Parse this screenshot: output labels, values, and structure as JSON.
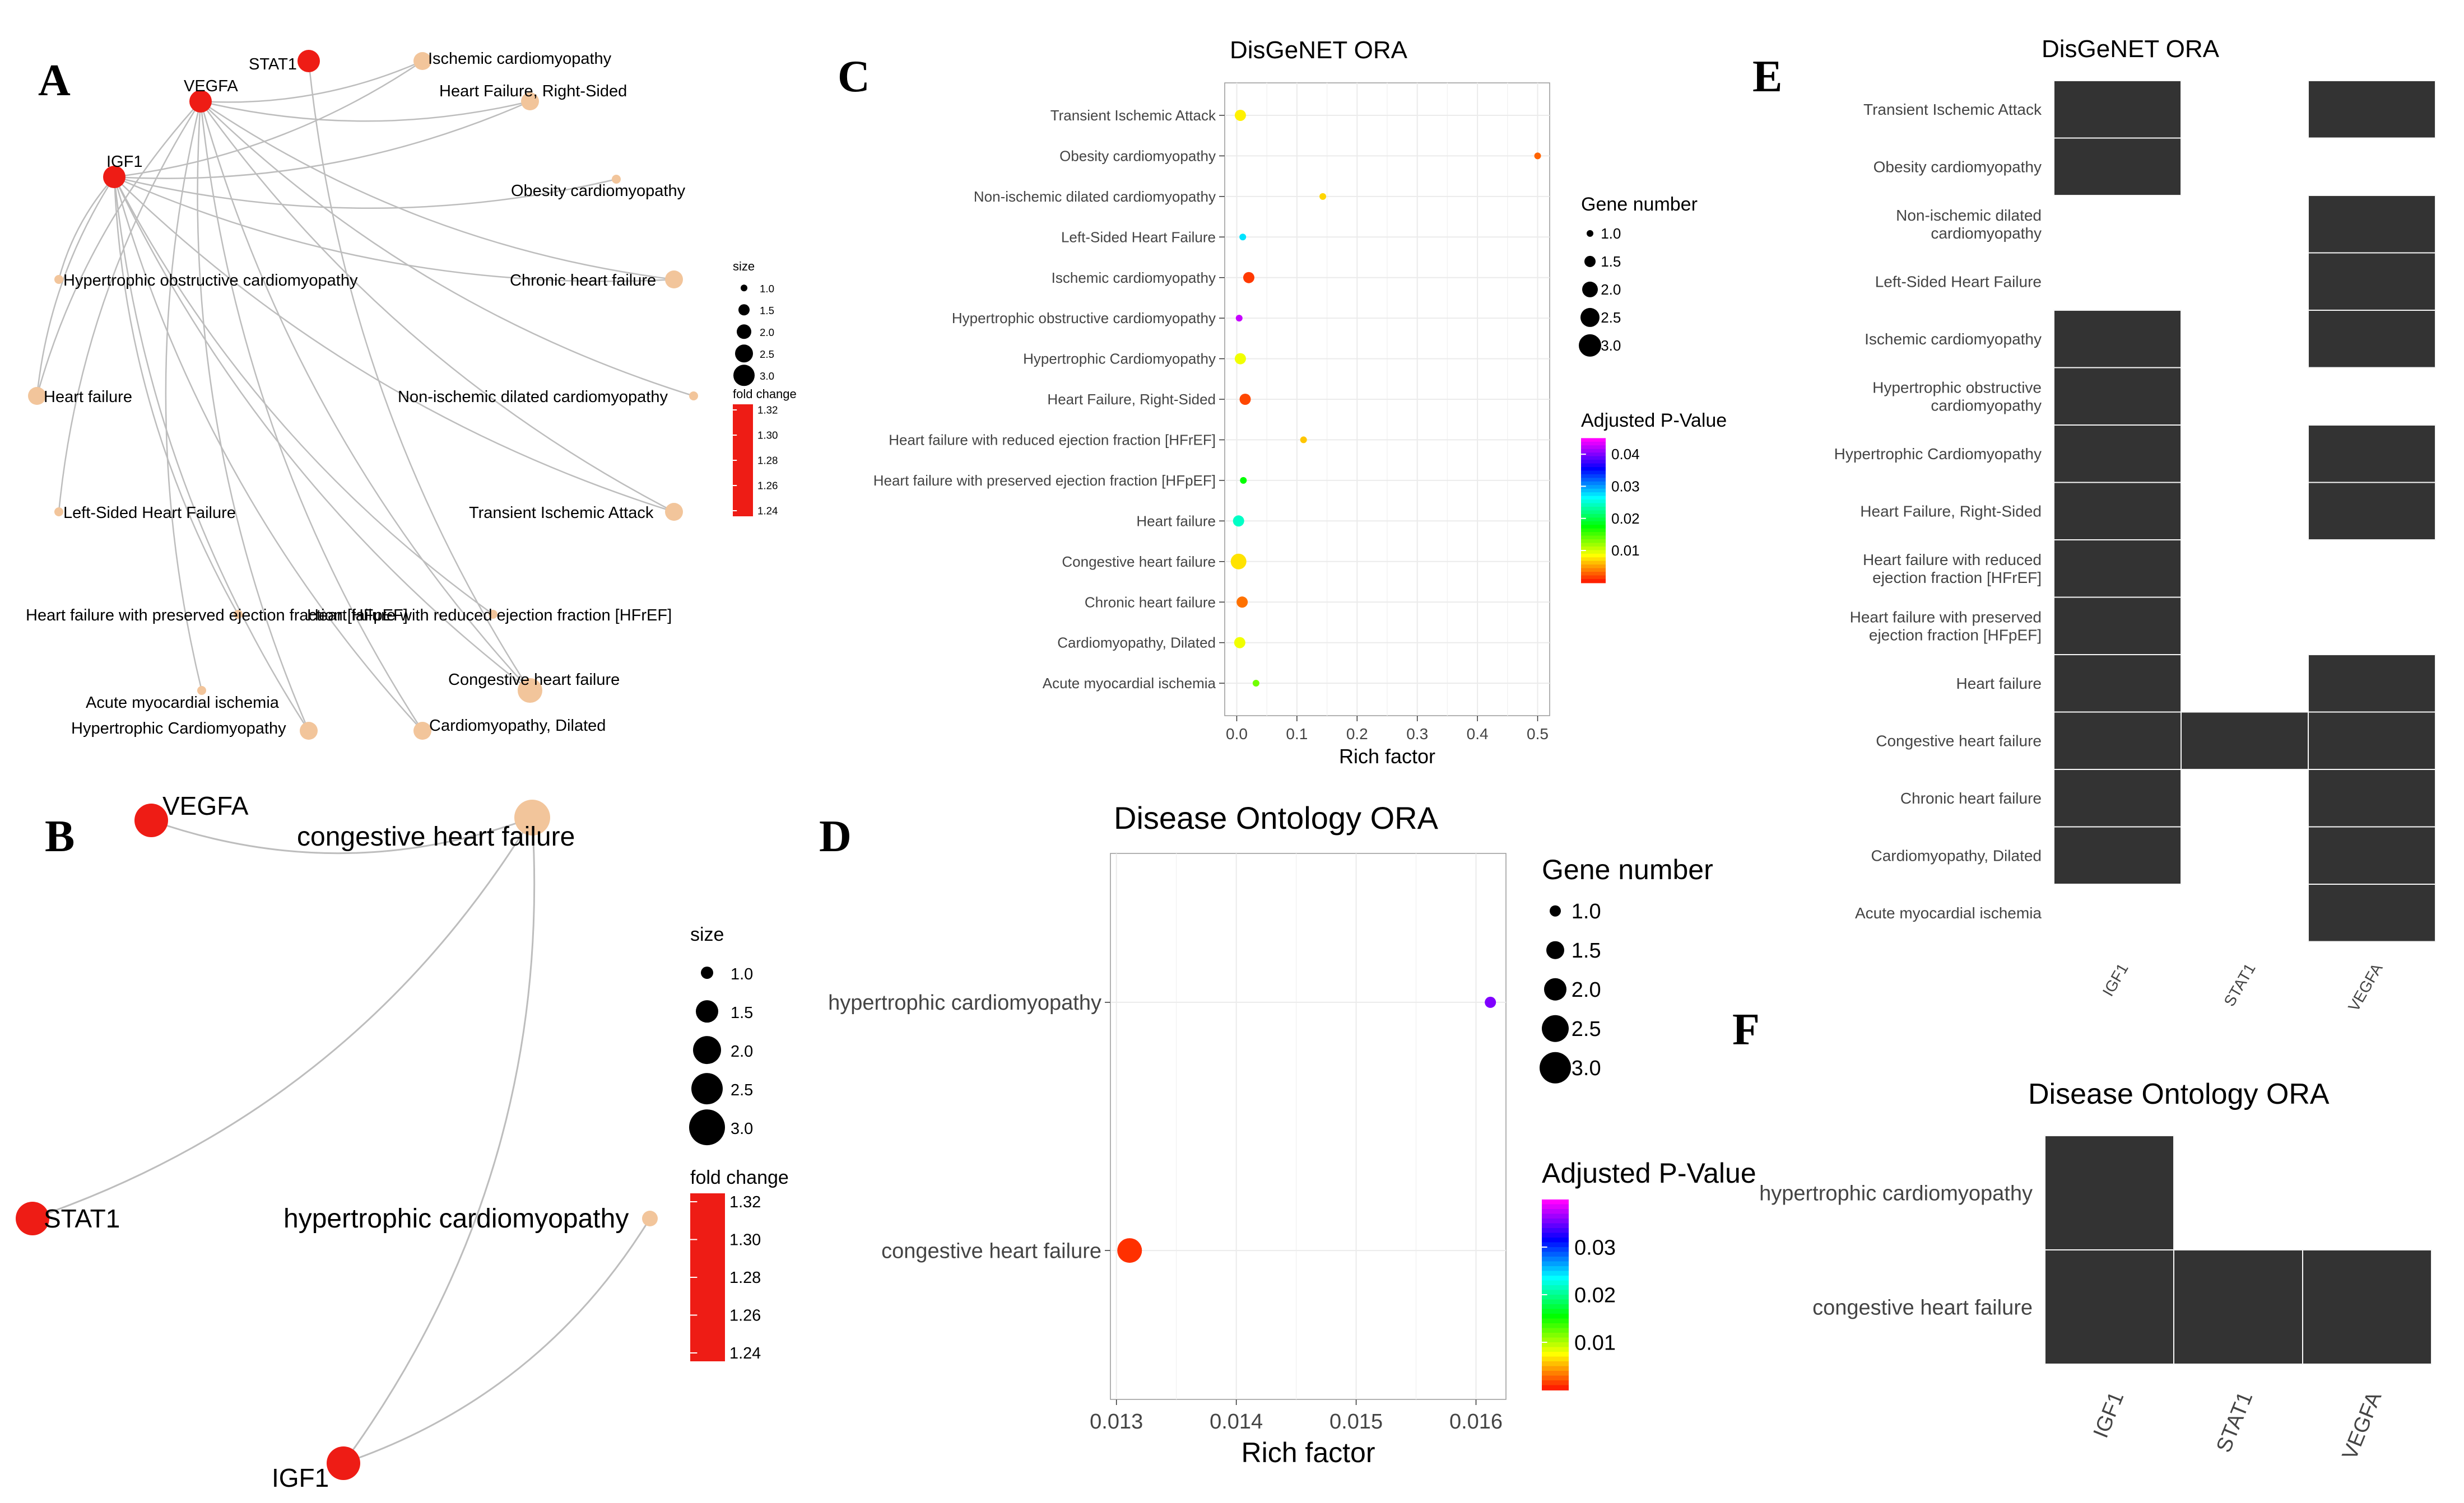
{
  "panel_labels": [
    "A",
    "B",
    "C",
    "D",
    "E",
    "F"
  ],
  "chart_data": [
    {
      "panel": "A",
      "type": "network",
      "genes": [
        {
          "name": "STAT1",
          "color": "#ee1c15"
        },
        {
          "name": "VEGFA",
          "color": "#ee1c15"
        },
        {
          "name": "IGF1",
          "color": "#ee1c15"
        }
      ],
      "diseases": [
        {
          "name": "Ischemic cardiomyopathy",
          "size": 2
        },
        {
          "name": "Heart Failure, Right-Sided",
          "size": 2
        },
        {
          "name": "Obesity cardiomyopathy",
          "size": 1
        },
        {
          "name": "Chronic heart failure",
          "size": 2
        },
        {
          "name": "Hypertrophic obstructive cardiomyopathy",
          "size": 1
        },
        {
          "name": "Heart failure",
          "size": 2
        },
        {
          "name": "Non-ischemic dilated cardiomyopathy",
          "size": 1
        },
        {
          "name": "Left-Sided Heart Failure",
          "size": 1
        },
        {
          "name": "Transient Ischemic Attack",
          "size": 2
        },
        {
          "name": "Heart failure with preserved ejection fraction [HFpEF]",
          "size": 1
        },
        {
          "name": "Heart failure with reduced ejection fraction [HFrEF]",
          "size": 1
        },
        {
          "name": "Acute myocardial ischemia",
          "size": 1
        },
        {
          "name": "Congestive heart failure",
          "size": 3
        },
        {
          "name": "Hypertrophic Cardiomyopathy",
          "size": 2
        },
        {
          "name": "Cardiomyopathy, Dilated",
          "size": 2
        }
      ],
      "edges": [
        [
          "VEGFA",
          "Ischemic cardiomyopathy"
        ],
        [
          "VEGFA",
          "Heart Failure, Right-Sided"
        ],
        [
          "VEGFA",
          "Chronic heart failure"
        ],
        [
          "VEGFA",
          "Non-ischemic dilated cardiomyopathy"
        ],
        [
          "VEGFA",
          "Left-Sided Heart Failure"
        ],
        [
          "VEGFA",
          "Transient Ischemic Attack"
        ],
        [
          "VEGFA",
          "Heart failure"
        ],
        [
          "VEGFA",
          "Congestive heart failure"
        ],
        [
          "VEGFA",
          "Hypertrophic Cardiomyopathy"
        ],
        [
          "VEGFA",
          "Cardiomyopathy, Dilated"
        ],
        [
          "VEGFA",
          "Acute myocardial ischemia"
        ],
        [
          "IGF1",
          "Ischemic cardiomyopathy"
        ],
        [
          "IGF1",
          "Obesity cardiomyopathy"
        ],
        [
          "IGF1",
          "Heart Failure, Right-Sided"
        ],
        [
          "IGF1",
          "Chronic heart failure"
        ],
        [
          "IGF1",
          "Hypertrophic obstructive cardiomyopathy"
        ],
        [
          "IGF1",
          "Heart failure"
        ],
        [
          "IGF1",
          "Transient Ischemic Attack"
        ],
        [
          "IGF1",
          "Heart failure with preserved ejection fraction [HFpEF]"
        ],
        [
          "IGF1",
          "Heart failure with reduced ejection fraction [HFrEF]"
        ],
        [
          "IGF1",
          "Congestive heart failure"
        ],
        [
          "IGF1",
          "Hypertrophic Cardiomyopathy"
        ],
        [
          "IGF1",
          "Cardiomyopathy, Dilated"
        ],
        [
          "STAT1",
          "Congestive heart failure"
        ]
      ],
      "size_legend": {
        "title": "size",
        "values": [
          "1.0",
          "1.5",
          "2.0",
          "2.5",
          "3.0"
        ]
      },
      "color_legend": {
        "title": "fold change",
        "values": [
          "1.32",
          "1.30",
          "1.28",
          "1.26",
          "1.24"
        ]
      }
    },
    {
      "panel": "B",
      "type": "network",
      "genes": [
        {
          "name": "VEGFA",
          "color": "#ee1c15"
        },
        {
          "name": "STAT1",
          "color": "#ee1c15"
        },
        {
          "name": "IGF1",
          "color": "#ee1c15"
        }
      ],
      "diseases": [
        {
          "name": "congestive heart failure",
          "size": 3
        },
        {
          "name": "hypertrophic cardiomyopathy",
          "size": 1
        }
      ],
      "edges": [
        [
          "VEGFA",
          "congestive heart failure"
        ],
        [
          "STAT1",
          "congestive heart failure"
        ],
        [
          "IGF1",
          "congestive heart failure"
        ],
        [
          "IGF1",
          "hypertrophic cardiomyopathy"
        ]
      ],
      "size_legend": {
        "title": "size",
        "values": [
          "1.0",
          "1.5",
          "2.0",
          "2.5",
          "3.0"
        ]
      },
      "color_legend": {
        "title": "fold change",
        "values": [
          "1.32",
          "1.30",
          "1.28",
          "1.26",
          "1.24"
        ]
      }
    },
    {
      "panel": "C",
      "type": "scatter",
      "title": "DisGeNET ORA",
      "xlabel": "Rich factor",
      "xlim": [
        -0.02,
        0.52
      ],
      "xticks": [
        "0.0",
        "0.1",
        "0.2",
        "0.3",
        "0.4",
        "0.5"
      ],
      "categories": [
        "Transient Ischemic Attack",
        "Obesity cardiomyopathy",
        "Non-ischemic dilated cardiomyopathy",
        "Left-Sided Heart Failure",
        "Ischemic cardiomyopathy",
        "Hypertrophic obstructive cardiomyopathy",
        "Hypertrophic Cardiomyopathy",
        "Heart Failure, Right-Sided",
        "Heart failure with reduced ejection fraction [HFrEF]",
        "Heart failure with preserved ejection fraction [HFpEF]",
        "Heart failure",
        "Congestive heart failure",
        "Chronic heart failure",
        "Cardiomyopathy, Dilated",
        "Acute myocardial ischemia"
      ],
      "rich_factor": [
        0.006,
        0.5,
        0.143,
        0.01,
        0.02,
        0.004,
        0.006,
        0.014,
        0.111,
        0.011,
        0.003,
        0.003,
        0.009,
        0.005,
        0.032
      ],
      "gene_number": [
        2,
        1,
        1,
        1,
        2,
        1,
        2,
        2,
        1,
        1,
        2,
        3,
        2,
        2,
        1
      ],
      "adj_p": [
        0.0085,
        0.0035,
        0.0075,
        0.028,
        0.002,
        0.043,
        0.0095,
        0.0025,
        0.007,
        0.018,
        0.025,
        0.008,
        0.004,
        0.0095,
        0.014
      ],
      "size_legend": {
        "title": "Gene number",
        "values": [
          "1.0",
          "1.5",
          "2.0",
          "2.5",
          "3.0"
        ]
      },
      "color_legend": {
        "title": "Adjusted P-Value",
        "values": [
          "0.04",
          "0.03",
          "0.02",
          "0.01"
        ]
      }
    },
    {
      "panel": "D",
      "type": "scatter",
      "title": "Disease Ontology ORA",
      "xlabel": "Rich factor",
      "xlim": [
        0.01295,
        0.01625
      ],
      "xticks": [
        "0.013",
        "0.014",
        "0.015",
        "0.016"
      ],
      "categories": [
        "hypertrophic cardiomyopathy",
        "congestive heart failure"
      ],
      "rich_factor": [
        0.01612,
        0.01311
      ],
      "gene_number": [
        1,
        3
      ],
      "adj_p": [
        0.036,
        0.0015
      ],
      "size_legend": {
        "title": "Gene number",
        "values": [
          "1.0",
          "1.5",
          "2.0",
          "2.5",
          "3.0"
        ]
      },
      "color_legend": {
        "title": "Adjusted P-Value",
        "values": [
          "0.03",
          "0.02",
          "0.01"
        ]
      }
    },
    {
      "panel": "E",
      "type": "heatmap",
      "title": "DisGeNET ORA",
      "rows": [
        "Transient Ischemic Attack",
        "Obesity cardiomyopathy",
        "Non-ischemic dilated\ncardiomyopathy",
        "Left-Sided Heart Failure",
        "Ischemic cardiomyopathy",
        "Hypertrophic obstructive\ncardiomyopathy",
        "Hypertrophic Cardiomyopathy",
        "Heart Failure, Right-Sided",
        "Heart failure with reduced\nejection fraction [HFrEF]",
        "Heart failure with preserved\nejection fraction [HFpEF]",
        "Heart failure",
        "Congestive heart failure",
        "Chronic heart failure",
        "Cardiomyopathy, Dilated",
        "Acute myocardial ischemia"
      ],
      "columns": [
        "IGF1",
        "STAT1",
        "VEGFA"
      ],
      "matrix": [
        [
          1,
          0,
          1
        ],
        [
          1,
          0,
          0
        ],
        [
          0,
          0,
          1
        ],
        [
          0,
          0,
          1
        ],
        [
          1,
          0,
          1
        ],
        [
          1,
          0,
          0
        ],
        [
          1,
          0,
          1
        ],
        [
          1,
          0,
          1
        ],
        [
          1,
          0,
          0
        ],
        [
          1,
          0,
          0
        ],
        [
          1,
          0,
          1
        ],
        [
          1,
          1,
          1
        ],
        [
          1,
          0,
          1
        ],
        [
          1,
          0,
          1
        ],
        [
          0,
          0,
          1
        ]
      ]
    },
    {
      "panel": "F",
      "type": "heatmap",
      "title": "Disease Ontology ORA",
      "rows": [
        "hypertrophic cardiomyopathy",
        "congestive heart failure"
      ],
      "columns": [
        "IGF1",
        "STAT1",
        "VEGFA"
      ],
      "matrix": [
        [
          1,
          0,
          0
        ],
        [
          1,
          1,
          1
        ]
      ]
    }
  ],
  "colors": {
    "gene": "#ee1c15",
    "disease": "#f2c59b",
    "edge": "#bdbdbd",
    "cell": "#333333",
    "grid": "#ebebeb"
  }
}
